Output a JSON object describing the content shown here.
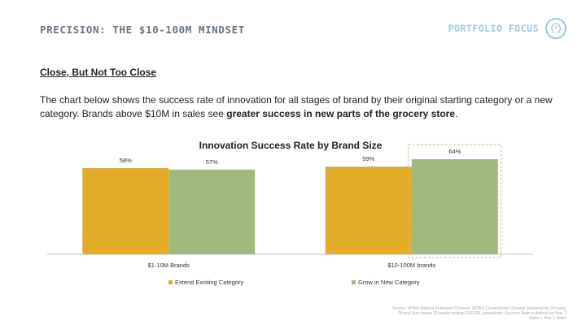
{
  "header": {
    "title": "PRECISION: THE $10-100M MINDSET",
    "brand": "PORTFOLIO FOCUS",
    "brand_icon": "head-profile-icon"
  },
  "section": {
    "heading": "Close, But Not Too Close",
    "paragraph_part1": "The chart below shows the success rate of innovation for all stages of brand by their original starting category or a new category. Brands above $10M in sales see ",
    "paragraph_bold": "greater success in new parts of the grocery store",
    "paragraph_end": "."
  },
  "chart_data": {
    "type": "bar",
    "title": "Innovation Success Rate by Brand Size",
    "categories": [
      "$1-10M Brands",
      "$10-100M brands"
    ],
    "series": [
      {
        "name": "Extend Existing Category",
        "values": [
          58,
          59
        ],
        "labels": [
          "58%",
          "59%"
        ],
        "color": "#e2ac29"
      },
      {
        "name": "Grow in New Category",
        "values": [
          57,
          64
        ],
        "labels": [
          "57%",
          "64%"
        ],
        "color": "#9fba7c"
      }
    ],
    "ylim": [
      0,
      70
    ],
    "grid": false,
    "legend": "bottom",
    "highlight": {
      "category": "$10-100M brands",
      "series": "Grow in New Category",
      "style": "dashed-box",
      "color": "#d9b98a"
    }
  },
  "footnote": {
    "line1": "Source: SPINS Natural Enhanced Channel, SPINS Conventional Channel (powered by Circana),",
    "line2": "*Brand Size based 20 weeks ending 01/21/24, annualized. Success Rate is defined as Year 2",
    "line3": "Sales ≥ Year 1 Sales"
  }
}
